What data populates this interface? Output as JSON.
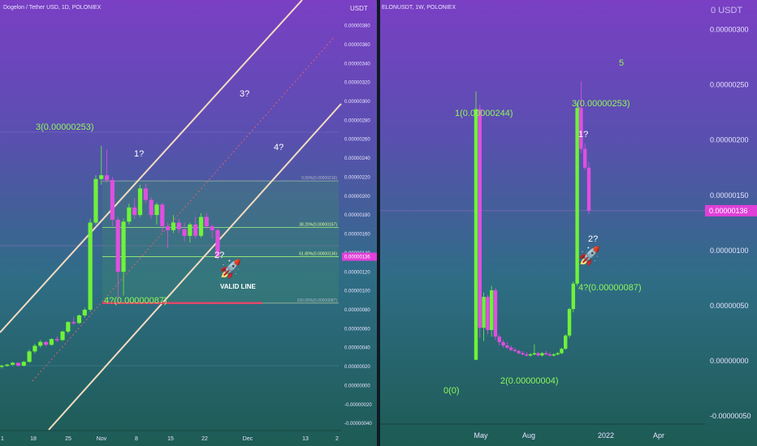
{
  "colors": {
    "up": "#6ff23a",
    "down": "#e04fe0",
    "wave": "#8ff75a",
    "channel": "#f3dcc0",
    "valid": "#e0476a",
    "price": "#e040d8",
    "box": "#3f8a6c"
  },
  "left": {
    "header": "Dogelon / Tether USD, 1D, POLONIEX",
    "currency": "USDT",
    "price_tag": "0.00000136",
    "yticks": [
      "0.00000380",
      "0.00000360",
      "0.00000340",
      "0.00000320",
      "0.00000300",
      "0.00000280",
      "0.00000260",
      "0.00000240",
      "0.00000220",
      "0.00000200",
      "0.00000180",
      "0.00000160",
      "0.00000140",
      "0.00000120",
      "0.00000100",
      "0.00000080",
      "0.00000060",
      "0.00000040",
      "0.00000020",
      "0.00000000",
      "-0.00000020",
      "-0.00000040"
    ],
    "xticks": [
      "1",
      "18",
      "25",
      "Nov",
      "8",
      "15",
      "22",
      "Dec",
      "13",
      "2"
    ],
    "labels": {
      "w3": "3(0.00000253)",
      "w1q": "1?",
      "w3q": "3?",
      "w4q": "4?",
      "w2q": "2?",
      "w4b": "4?(0.00000087)",
      "valid": "VALID LINE",
      "fib0": "0.00%(0.00000216)",
      "fib382": "38.20%(0.00000167)",
      "fib618": "61.80%(0.00000136)",
      "fib100": "100.00%(0.00000087)"
    }
  },
  "right": {
    "header": "ELONUSDT, 1W, POLONIEX",
    "currency": "USDT",
    "currency_prefix": "0",
    "price_tag": "0.00000136",
    "yticks": [
      "0.00000300",
      "0.00000250",
      "0.00000200",
      "0.00000150",
      "0.00000100",
      "0.00000050",
      "0.00000000",
      "-0.00000050"
    ],
    "xticks": [
      "May",
      "Aug",
      "2022",
      "Apr"
    ],
    "labels": {
      "w5": "5",
      "w1": "1(0.00000244)",
      "w3": "3(0.00000253)",
      "w1q": "1?",
      "w2q": "2?",
      "w4b": "4?(0.00000087)",
      "w2": "2(0.00000004)",
      "w0": "0(0)"
    }
  },
  "chart_data": [
    {
      "type": "candlestick",
      "title": "Dogelon / Tether USD, 1D, POLONIEX",
      "ylabel": "USDT",
      "ylim": [
        -4.5e-07,
        3.95e-06
      ],
      "candles": [
        [
          2e-07,
          2.2e-07,
          1.8e-07,
          2.1e-07
        ],
        [
          2.1e-07,
          2.3e-07,
          2e-07,
          2.2e-07
        ],
        [
          2.2e-07,
          2.5e-07,
          2.1e-07,
          2.4e-07
        ],
        [
          2.4e-07,
          2.4e-07,
          2e-07,
          2.1e-07
        ],
        [
          2.1e-07,
          2.6e-07,
          2e-07,
          2.5e-07
        ],
        [
          2.5e-07,
          3.8e-07,
          2.4e-07,
          3.6e-07
        ],
        [
          3.6e-07,
          4.4e-07,
          3.4e-07,
          4.2e-07
        ],
        [
          4.2e-07,
          4.8e-07,
          4e-07,
          4.6e-07
        ],
        [
          4.6e-07,
          4.7e-07,
          4.1e-07,
          4.3e-07
        ],
        [
          4.3e-07,
          5e-07,
          4.2e-07,
          4.9e-07
        ],
        [
          4.9e-07,
          5.2e-07,
          4.6e-07,
          4.8e-07
        ],
        [
          4.8e-07,
          5.8e-07,
          4.7e-07,
          5.7e-07
        ],
        [
          5.7e-07,
          6.8e-07,
          5.5e-07,
          6.7e-07
        ],
        [
          6.7e-07,
          7.2e-07,
          6.4e-07,
          6.6e-07
        ],
        [
          6.6e-07,
          7.5e-07,
          6.5e-07,
          7.4e-07
        ],
        [
          7.4e-07,
          8.2e-07,
          7.2e-07,
          8e-07
        ],
        [
          8e-07,
          1.76e-06,
          7.8e-07,
          1.72e-06
        ],
        [
          1.72e-06,
          2.22e-06,
          1.7e-06,
          2.18e-06
        ],
        [
          2.18e-06,
          2.53e-06,
          2.12e-06,
          2.22e-06
        ],
        [
          2.22e-06,
          2.49e-06,
          2.14e-06,
          2.17e-06
        ],
        [
          2.17e-06,
          2.2e-06,
          1.68e-06,
          1.75e-06
        ],
        [
          1.75e-06,
          1.78e-06,
          8.7e-07,
          1.2e-06
        ],
        [
          1.2e-06,
          1.76e-06,
          9.5e-07,
          1.73e-06
        ],
        [
          1.73e-06,
          1.92e-06,
          1.7e-06,
          1.88e-06
        ],
        [
          1.88e-06,
          1.98e-06,
          1.76e-06,
          1.8e-06
        ],
        [
          1.8e-06,
          2.12e-06,
          1.78e-06,
          2.08e-06
        ],
        [
          2.08e-06,
          2.13e-06,
          1.93e-06,
          1.96e-06
        ],
        [
          1.96e-06,
          1.99e-06,
          1.76e-06,
          1.8e-06
        ],
        [
          1.8e-06,
          1.93e-06,
          1.7e-06,
          1.91e-06
        ],
        [
          1.91e-06,
          1.93e-06,
          1.62e-06,
          1.68e-06
        ],
        [
          1.68e-06,
          1.72e-06,
          1.45e-06,
          1.64e-06
        ],
        [
          1.64e-06,
          1.8e-06,
          1.61e-06,
          1.72e-06
        ],
        [
          1.72e-06,
          1.76e-06,
          1.61e-06,
          1.65e-06
        ],
        [
          1.65e-06,
          1.72e-06,
          1.52e-06,
          1.58e-06
        ],
        [
          1.58e-06,
          1.72e-06,
          1.51e-06,
          1.7e-06
        ],
        [
          1.7e-06,
          1.78e-06,
          1.55e-06,
          1.58e-06
        ],
        [
          1.58e-06,
          1.82e-06,
          1.56e-06,
          1.78e-06
        ],
        [
          1.78e-06,
          1.82e-06,
          1.65e-06,
          1.68e-06
        ],
        [
          1.68e-06,
          1.7e-06,
          1.55e-06,
          1.64e-06
        ],
        [
          1.64e-06,
          1.66e-06,
          1.33e-06,
          1.36e-06
        ]
      ],
      "fib_levels": [
        2.16e-06,
        1.67e-06,
        1.36e-06,
        8.7e-07
      ],
      "valid_line": 8.7e-07,
      "last_price": 1.36e-06
    },
    {
      "type": "candlestick",
      "title": "ELONUSDT, 1W, POLONIEX",
      "ylabel": "USDT",
      "ylim": [
        -5.5e-07,
        3.18e-06
      ],
      "candles": [
        [
          1e-08,
          2.44e-06,
          1e-08,
          2.28e-06
        ],
        [
          2.28e-06,
          2.32e-06,
          2.1e-07,
          3e-07
        ],
        [
          3e-07,
          6.2e-07,
          1.8e-07,
          5.8e-07
        ],
        [
          5.8e-07,
          6e-07,
          2.4e-07,
          2.8e-07
        ],
        [
          2.8e-07,
          6.8e-07,
          2.2e-07,
          6.4e-07
        ],
        [
          6.4e-07,
          6.6e-07,
          1.9e-07,
          2.2e-07
        ],
        [
          2.2e-07,
          2.4e-07,
          1.4e-07,
          1.7e-07
        ],
        [
          1.7e-07,
          1.9e-07,
          1.2e-07,
          1.4e-07
        ],
        [
          1.4e-07,
          1.7e-07,
          1.1e-07,
          1.2e-07
        ],
        [
          1.2e-07,
          1.4e-07,
          9e-08,
          1e-07
        ],
        [
          1e-07,
          1.2e-07,
          8e-08,
          9e-08
        ],
        [
          9e-08,
          1e-07,
          6e-08,
          7e-08
        ],
        [
          7e-08,
          9e-08,
          5e-08,
          6e-08
        ],
        [
          6e-08,
          8e-08,
          4e-08,
          5e-08
        ],
        [
          5e-08,
          7e-08,
          4e-08,
          6e-08
        ],
        [
          6e-08,
          1.5e-07,
          5e-08,
          7e-08
        ],
        [
          7e-08,
          8e-08,
          4e-08,
          5e-08
        ],
        [
          5e-08,
          8e-08,
          4e-08,
          7e-08
        ],
        [
          7e-08,
          9e-08,
          5e-08,
          6e-08
        ],
        [
          6e-08,
          8e-08,
          4e-08,
          5e-08
        ],
        [
          5e-08,
          7e-08,
          4e-08,
          6e-08
        ],
        [
          6e-08,
          8e-08,
          5e-08,
          7e-08
        ],
        [
          7e-08,
          1.2e-07,
          6e-08,
          1.1e-07
        ],
        [
          1.1e-07,
          2.4e-07,
          1e-07,
          2.3e-07
        ],
        [
          2.3e-07,
          4.8e-07,
          2.1e-07,
          4.7e-07
        ],
        [
          4.7e-07,
          7.2e-07,
          4.4e-07,
          7e-07
        ],
        [
          7e-07,
          2.34e-06,
          6.8e-07,
          2.29e-06
        ],
        [
          2.29e-06,
          2.53e-06,
          1.88e-06,
          1.92e-06
        ],
        [
          1.92e-06,
          1.97e-06,
          1.73e-06,
          1.75e-06
        ],
        [
          1.75e-06,
          1.8e-06,
          1.33e-06,
          1.36e-06
        ]
      ],
      "last_price": 1.36e-06
    }
  ]
}
